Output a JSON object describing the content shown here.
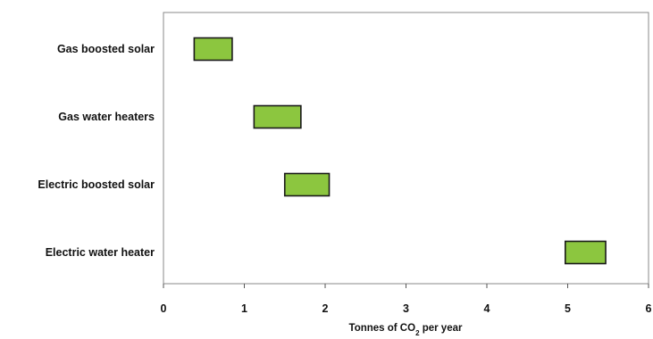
{
  "chart_data": {
    "type": "bar",
    "orientation": "horizontal-range",
    "categories": [
      "Gas boosted solar",
      "Gas water heaters",
      "Electric boosted solar",
      "Electric water heater"
    ],
    "ranges": [
      [
        0.38,
        0.85
      ],
      [
        1.12,
        1.7
      ],
      [
        1.5,
        2.05
      ],
      [
        4.97,
        5.47
      ]
    ],
    "xlim": [
      0,
      6
    ],
    "xticks": [
      "0",
      "1",
      "2",
      "3",
      "4",
      "5",
      "6"
    ],
    "xlabel_main": "Tonnes of CO",
    "xlabel_sub": "2",
    "xlabel_tail": " per year",
    "grid": false,
    "bar_color": "#8cc63f",
    "bar_border": "#1a1a1a"
  }
}
